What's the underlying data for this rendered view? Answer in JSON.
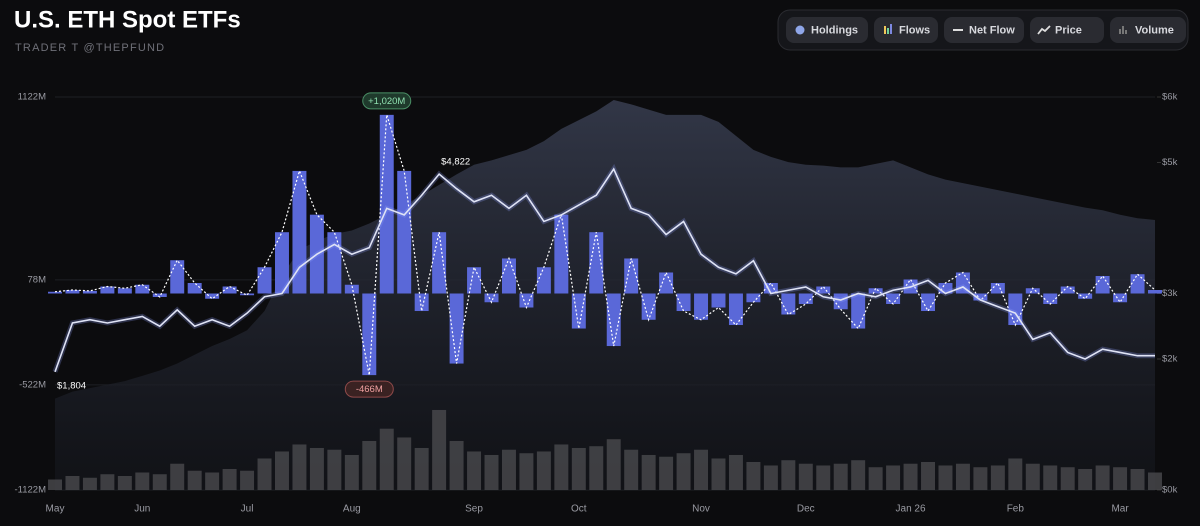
{
  "chart_data": {
    "type": "combo",
    "title": "U.S. ETH Spot ETFs",
    "subtitle": "TRADER T @THEPFUND",
    "buttons": [
      "Holdings",
      "Flows",
      "Net Flow",
      "Price",
      "Volume"
    ],
    "categories": [
      "May",
      null,
      null,
      null,
      null,
      "Jun",
      null,
      null,
      null,
      null,
      null,
      "Jul",
      null,
      null,
      null,
      null,
      null,
      "Aug",
      null,
      null,
      null,
      null,
      null,
      null,
      "Sep",
      null,
      null,
      null,
      null,
      null,
      "Oct",
      null,
      null,
      null,
      null,
      null,
      null,
      "Nov",
      null,
      null,
      null,
      null,
      null,
      "Dec",
      null,
      null,
      null,
      null,
      null,
      "Jan 26",
      null,
      null,
      null,
      null,
      null,
      "Feb",
      null,
      null,
      null,
      null,
      null,
      "Mar",
      null,
      null
    ],
    "ylim": [
      -1122,
      1122
    ],
    "yticks": [
      {
        "value": 1122,
        "label": "1122M"
      },
      {
        "value": 78,
        "label": "78M"
      },
      {
        "value": -522,
        "label": "-522M"
      },
      {
        "value": -1122,
        "label": "-1122M"
      }
    ],
    "y2lim": [
      0,
      6000
    ],
    "y2ticks": [
      {
        "value": 6000,
        "label": "$6k"
      },
      {
        "value": 5000,
        "label": "$5k"
      },
      {
        "value": 3000,
        "label": "$3k"
      },
      {
        "value": 2000,
        "label": "$2k"
      },
      {
        "value": 0,
        "label": "$0k"
      }
    ],
    "series": [
      {
        "name": "Flows",
        "kind": "bar",
        "color": "#5a68d8",
        "values": [
          10,
          20,
          15,
          40,
          30,
          50,
          -20,
          190,
          60,
          -30,
          40,
          -10,
          150,
          350,
          700,
          450,
          350,
          50,
          -466,
          1020,
          700,
          -100,
          350,
          -400,
          150,
          -50,
          200,
          -80,
          150,
          450,
          -200,
          350,
          -300,
          200,
          -150,
          120,
          -100,
          -150,
          -80,
          -180,
          -50,
          60,
          -120,
          -60,
          40,
          -90,
          -200,
          30,
          -60,
          80,
          -100,
          60,
          120,
          -40,
          60,
          -180,
          30,
          -60,
          40,
          -30,
          100,
          -50,
          110,
          20
        ],
        "value_labels": [
          null,
          null,
          null,
          null,
          null,
          null,
          null,
          null,
          null,
          null,
          null,
          null,
          null,
          null,
          null,
          null,
          null,
          null,
          "-466M",
          "+1,020M",
          null,
          null,
          null,
          null,
          null,
          null,
          null,
          null,
          null,
          null,
          null,
          null,
          null,
          null,
          null,
          null,
          null,
          null,
          null,
          null,
          null,
          null,
          null,
          null,
          null,
          null,
          null,
          null,
          null,
          null,
          null,
          null,
          null,
          null,
          null,
          null,
          null,
          null,
          null,
          null,
          null,
          null,
          null,
          null
        ]
      },
      {
        "name": "Price",
        "kind": "line",
        "axis": "y2",
        "color": "#dfe3f5",
        "values": [
          1804,
          2550,
          2600,
          2550,
          2600,
          2650,
          2500,
          2750,
          2500,
          2600,
          2500,
          2700,
          2950,
          3000,
          3400,
          3600,
          3750,
          3600,
          3700,
          4300,
          4200,
          4500,
          4822,
          4600,
          4400,
          4500,
          4300,
          4500,
          4100,
          4200,
          4350,
          4500,
          4900,
          4300,
          4200,
          3900,
          4100,
          3600,
          3400,
          3300,
          3500,
          3000,
          3050,
          3100,
          2950,
          2900,
          3000,
          2950,
          3050,
          3100,
          3200,
          3000,
          3100,
          2900,
          2800,
          2700,
          2300,
          2400,
          2100,
          2000,
          2150,
          2100,
          2050,
          2050
        ],
        "value_labels": [
          "$1,804",
          null,
          null,
          null,
          null,
          null,
          null,
          null,
          null,
          null,
          null,
          null,
          null,
          null,
          null,
          null,
          null,
          null,
          null,
          null,
          null,
          null,
          "$4,822",
          null,
          null,
          null,
          null,
          null,
          null,
          null,
          null,
          null,
          null,
          null,
          null,
          null,
          null,
          null,
          null,
          null,
          null,
          null,
          null,
          null,
          null,
          null,
          null,
          null,
          null,
          null,
          null,
          null,
          null,
          null,
          null,
          null,
          null,
          null,
          null,
          null,
          null,
          null,
          null,
          null
        ]
      },
      {
        "name": "Holdings",
        "kind": "area",
        "color": "#2a2f3a",
        "values": [
          -600,
          -560,
          -540,
          -520,
          -500,
          -470,
          -440,
          -400,
          -350,
          -300,
          -260,
          -210,
          -100,
          100,
          250,
          300,
          340,
          360,
          400,
          450,
          505,
          560,
          620,
          680,
          735,
          760,
          790,
          820,
          870,
          940,
          990,
          1040,
          1105,
          1080,
          1050,
          1020,
          1020,
          1020,
          980,
          900,
          820,
          780,
          750,
          735,
          730,
          720,
          720,
          740,
          760,
          720,
          680,
          650,
          630,
          610,
          590,
          570,
          550,
          530,
          510,
          490,
          475,
          450,
          430,
          420
        ]
      },
      {
        "name": "Volume",
        "kind": "volume",
        "color": "#4a4a4e",
        "values": [
          60,
          80,
          70,
          90,
          80,
          100,
          90,
          150,
          110,
          100,
          120,
          110,
          180,
          220,
          260,
          240,
          230,
          200,
          280,
          350,
          300,
          240,
          457,
          280,
          220,
          200,
          230,
          210,
          220,
          260,
          240,
          250,
          290,
          230,
          200,
          190,
          210,
          230,
          180,
          200,
          160,
          140,
          170,
          150,
          140,
          150,
          170,
          130,
          140,
          150,
          160,
          140,
          150,
          130,
          140,
          180,
          150,
          140,
          130,
          120,
          140,
          130,
          120,
          100
        ]
      }
    ]
  }
}
